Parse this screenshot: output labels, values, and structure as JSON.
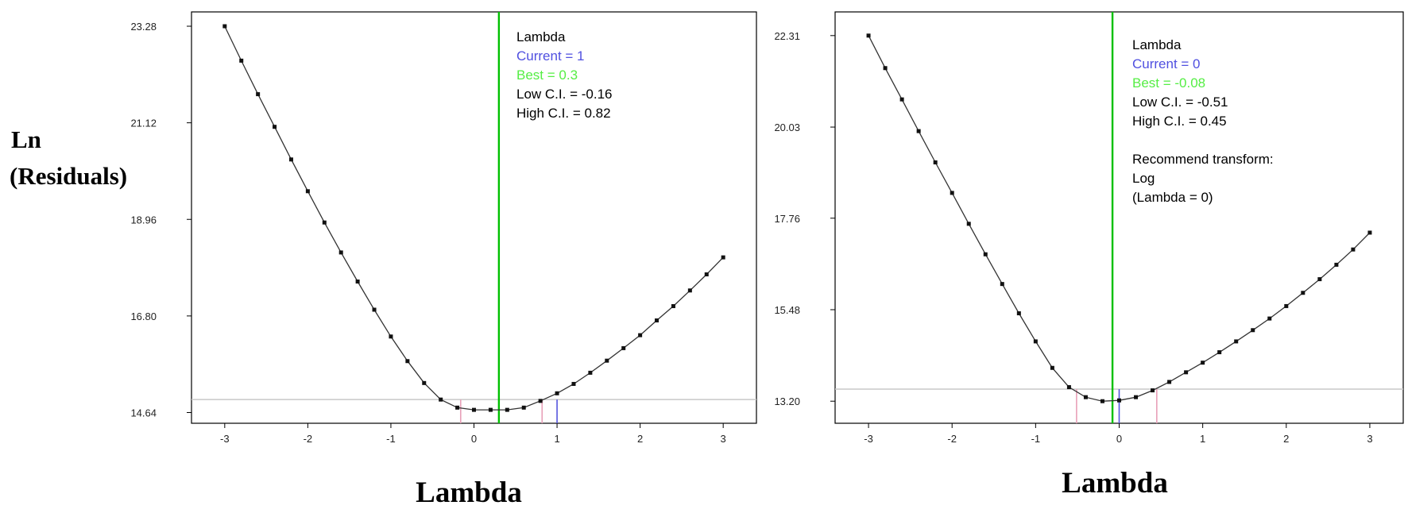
{
  "y_axis_label": [
    "Ln",
    "(Residuals)"
  ],
  "colors": {
    "curve": "#333333",
    "point": "#111111",
    "best_line": "#00c000",
    "current_line": "#5555dd",
    "ci_line": "#e8a0b8",
    "min_line": "#c8c8c8",
    "frame": "#000000",
    "ann_text": "#000000",
    "ann_current": "#5050e0",
    "ann_best": "#55ee44"
  },
  "chart_data": [
    {
      "type": "line",
      "title": "",
      "xlabel": "Lambda",
      "ylabel": "Ln (Residuals)",
      "xlim": [
        -3.4,
        3.4
      ],
      "ylim": [
        14.4,
        23.6
      ],
      "x_ticks": [
        -3,
        -2,
        -1,
        0,
        1,
        2,
        3
      ],
      "y_ticks": [
        "14.64",
        "16.80",
        "18.96",
        "21.12",
        "23.28"
      ],
      "grid": false,
      "series": [
        {
          "x": [
            -3.0,
            -2.8,
            -2.6,
            -2.4,
            -2.2,
            -2.0,
            -1.8,
            -1.6,
            -1.4,
            -1.2,
            -1.0,
            -0.8,
            -0.6,
            -0.4,
            -0.2,
            0.0,
            0.2,
            0.4,
            0.6,
            0.8,
            1.0,
            1.2,
            1.4,
            1.6,
            1.8,
            2.0,
            2.2,
            2.4,
            2.6,
            2.8,
            3.0
          ],
          "y": [
            23.28,
            22.51,
            21.76,
            21.03,
            20.3,
            19.59,
            18.89,
            18.22,
            17.57,
            16.94,
            16.34,
            15.79,
            15.3,
            14.93,
            14.75,
            14.7,
            14.7,
            14.7,
            14.75,
            14.9,
            15.07,
            15.28,
            15.53,
            15.8,
            16.08,
            16.37,
            16.7,
            17.02,
            17.37,
            17.73,
            18.11
          ]
        }
      ],
      "annotations": {
        "heading": "Lambda",
        "current": "Current = 1",
        "best": "Best = 0.3",
        "low_ci": "Low C.I. = -0.16",
        "high_ci": "High C.I. = 0.82",
        "extra": []
      },
      "markers": {
        "current": 1,
        "best": 0.3,
        "low_ci": -0.16,
        "high_ci": 0.82,
        "min_y": 14.93
      }
    },
    {
      "type": "line",
      "title": "",
      "xlabel": "Lambda",
      "ylabel": "",
      "xlim": [
        -3.4,
        3.4
      ],
      "ylim": [
        12.65,
        22.9
      ],
      "x_ticks": [
        -3,
        -2,
        -1,
        0,
        1,
        2,
        3
      ],
      "y_ticks": [
        "13.20",
        "15.48",
        "17.76",
        "20.03",
        "22.31"
      ],
      "grid": false,
      "series": [
        {
          "x": [
            -3.0,
            -2.8,
            -2.6,
            -2.4,
            -2.2,
            -2.0,
            -1.8,
            -1.6,
            -1.4,
            -1.2,
            -1.0,
            -0.8,
            -0.6,
            -0.4,
            -0.2,
            0.0,
            0.2,
            0.4,
            0.6,
            0.8,
            1.0,
            1.2,
            1.4,
            1.6,
            1.8,
            2.0,
            2.2,
            2.4,
            2.6,
            2.8,
            3.0
          ],
          "y": [
            22.31,
            21.5,
            20.72,
            19.93,
            19.15,
            18.39,
            17.62,
            16.86,
            16.12,
            15.39,
            14.69,
            14.03,
            13.55,
            13.3,
            13.2,
            13.22,
            13.3,
            13.47,
            13.68,
            13.92,
            14.16,
            14.42,
            14.69,
            14.97,
            15.26,
            15.57,
            15.9,
            16.24,
            16.6,
            16.98,
            17.4
          ]
        }
      ],
      "annotations": {
        "heading": "Lambda",
        "current": "Current = 0",
        "best": "Best = -0.08",
        "low_ci": "Low C.I. = -0.51",
        "high_ci": "High C.I. = 0.45",
        "extra": [
          "Recommend transform:",
          "Log",
          " (Lambda = 0)"
        ]
      },
      "markers": {
        "current": 0,
        "best": -0.08,
        "low_ci": -0.51,
        "high_ci": 0.45,
        "min_y": 13.5
      }
    }
  ]
}
